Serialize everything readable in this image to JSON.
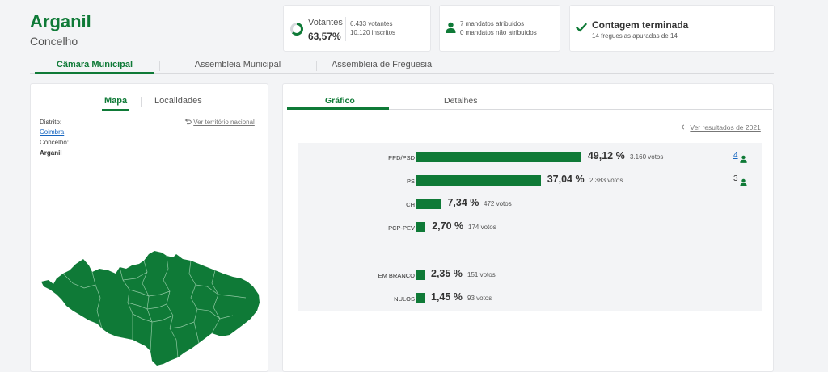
{
  "header": {
    "title": "Arganil",
    "subtitle": "Concelho"
  },
  "votantes": {
    "label": "Votantes",
    "percent": "63,57%",
    "percent_value": 63.57,
    "votantes": "6.433 votantes",
    "inscritos": "10.120 inscritos"
  },
  "mandatos": {
    "attributed": "7 mandatos atribuídos",
    "unattributed": "0 mandatos não atribuídos",
    "icon": "person-icon"
  },
  "contagem": {
    "title": "Contagem terminada",
    "subtitle": "14 freguesias apuradas de 14",
    "icon": "check-icon"
  },
  "main_tabs": [
    {
      "label": "Câmara Municipal",
      "active": true
    },
    {
      "label": "Assembleia Municipal",
      "active": false
    },
    {
      "label": "Assembleia de Freguesia",
      "active": false
    }
  ],
  "left_panel": {
    "tabs": [
      {
        "label": "Mapa",
        "active": true
      },
      {
        "label": "Localidades",
        "active": false
      }
    ],
    "national_link": "Ver território nacional",
    "distrito_label": "Distrito:",
    "distrito_value": "Coimbra",
    "concelho_label": "Concelho:",
    "concelho_value": "Arganil"
  },
  "right_panel": {
    "tabs": [
      {
        "label": "Gráfico",
        "active": true
      },
      {
        "label": "Detalhes",
        "active": false
      }
    ],
    "previous_results_link": "Ver resultados de 2021"
  },
  "colors": {
    "accent": "#0f7a37",
    "link": "#1565c0"
  },
  "chart_data": {
    "type": "bar",
    "orientation": "horizontal",
    "categories": [
      "PPD/PSD",
      "PS",
      "CH",
      "PCP-PEV",
      "EM BRANCO",
      "NULOS"
    ],
    "values": [
      49.12,
      37.04,
      7.34,
      2.7,
      2.35,
      1.45
    ],
    "percent_labels": [
      "49,12 %",
      "37,04 %",
      "7,34 %",
      "2,70 %",
      "2,35 %",
      "1,45 %"
    ],
    "votes": [
      3160,
      2383,
      472,
      174,
      151,
      93
    ],
    "vote_labels": [
      "3.160 votos",
      "2.383 votos",
      "472 votos",
      "174 votos",
      "151 votos",
      "93 votos"
    ],
    "mandates": [
      4,
      3,
      null,
      null,
      null,
      null
    ],
    "xlim": [
      0,
      100
    ]
  }
}
